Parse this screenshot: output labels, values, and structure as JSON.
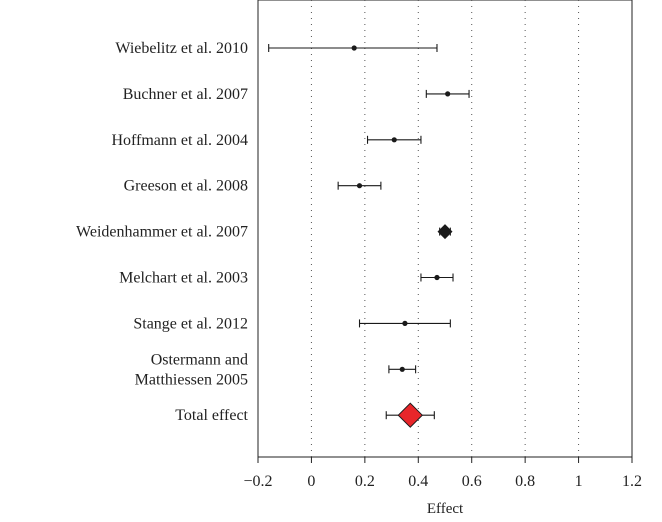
{
  "chart_data": {
    "type": "forest",
    "xlabel": "Effect",
    "xlim": [
      -0.2,
      1.2
    ],
    "xticks": [
      -0.2,
      0,
      0.2,
      0.4,
      0.6,
      0.8,
      1,
      1.2
    ],
    "xtick_labels": [
      "−0.2",
      "0",
      "0.2",
      "0.4",
      "0.6",
      "0.8",
      "1",
      "1.2"
    ],
    "grid": "vertical dotted",
    "studies": [
      {
        "label_lines": [
          "Wiebelitz et al. 2010"
        ],
        "estimate": 0.16,
        "ci": [
          -0.16,
          0.47
        ],
        "marker": "point"
      },
      {
        "label_lines": [
          "Buchner et al. 2007"
        ],
        "estimate": 0.51,
        "ci": [
          0.43,
          0.59
        ],
        "marker": "point"
      },
      {
        "label_lines": [
          "Hoffmann et al. 2004"
        ],
        "estimate": 0.31,
        "ci": [
          0.21,
          0.41
        ],
        "marker": "point"
      },
      {
        "label_lines": [
          "Greeson et al. 2008"
        ],
        "estimate": 0.18,
        "ci": [
          0.1,
          0.26
        ],
        "marker": "point"
      },
      {
        "label_lines": [
          "Weidenhammer et al. 2007"
        ],
        "estimate": 0.5,
        "ci": [
          0.48,
          0.52
        ],
        "marker": "diamond-small"
      },
      {
        "label_lines": [
          "Melchart et al. 2003"
        ],
        "estimate": 0.47,
        "ci": [
          0.41,
          0.53
        ],
        "marker": "point"
      },
      {
        "label_lines": [
          "Stange et al. 2012"
        ],
        "estimate": 0.35,
        "ci": [
          0.18,
          0.52
        ],
        "marker": "point"
      },
      {
        "label_lines": [
          "Ostermann and",
          "Matthiessen 2005"
        ],
        "estimate": 0.34,
        "ci": [
          0.29,
          0.39
        ],
        "marker": "point"
      }
    ],
    "total": {
      "label_lines": [
        "Total effect"
      ],
      "estimate": 0.37,
      "ci": [
        0.28,
        0.46
      ],
      "marker": "diamond-large",
      "color": "#e8262a"
    },
    "colors": {
      "marker": "#1a1a1a",
      "total": "#e8262a",
      "grid": "#555555"
    }
  }
}
